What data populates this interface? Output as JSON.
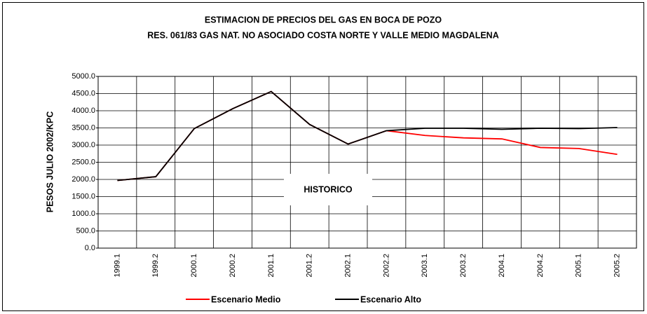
{
  "chart_data": {
    "type": "line",
    "title": "ESTIMACION DE PRECIOS DEL GAS EN BOCA DE POZO",
    "subtitle": "RES. 061/83 GAS NAT. NO ASOCIADO COSTA NORTE Y VALLE MEDIO MAGDALENA",
    "y_label": "PESOS JULIO 2002/KPC",
    "annotation": "HISTORICO",
    "categories": [
      "1999.1",
      "1999.2",
      "2000.1",
      "2000.2",
      "2001.1",
      "2001.2",
      "2002.1",
      "2002.2",
      "2003.1",
      "2003.2",
      "2004.1",
      "2004.2",
      "2005.1",
      "2005.2"
    ],
    "series": [
      {
        "name": "Escenario Medio",
        "color": "#ff0000",
        "values": [
          1970,
          2080,
          3480,
          4060,
          4560,
          3600,
          3030,
          3420,
          3280,
          3210,
          3180,
          2930,
          2900,
          2730
        ]
      },
      {
        "name": "Escenario Alto",
        "color": "#000000",
        "values": [
          1970,
          2080,
          3480,
          4060,
          4560,
          3600,
          3030,
          3420,
          3490,
          3490,
          3460,
          3490,
          3480,
          3510
        ]
      }
    ],
    "ylim": [
      0,
      5000
    ],
    "yticks": [
      {
        "value": 0,
        "label": "0.0"
      },
      {
        "value": 500,
        "label": "500.0"
      },
      {
        "value": 1000,
        "label": "1000.0"
      },
      {
        "value": 1500,
        "label": "1500.0"
      },
      {
        "value": 2000,
        "label": "2000.0"
      },
      {
        "value": 2500,
        "label": "2500.0"
      },
      {
        "value": 3000,
        "label": "3000.0"
      },
      {
        "value": 3500,
        "label": "3500.0"
      },
      {
        "value": 4000,
        "label": "4000.0"
      },
      {
        "value": 4500,
        "label": "4500.0"
      },
      {
        "value": 5000,
        "label": "5000.0"
      }
    ],
    "grid": true,
    "legend": "bottom"
  }
}
